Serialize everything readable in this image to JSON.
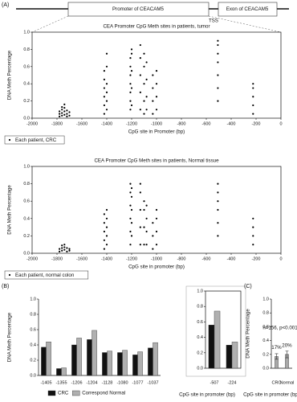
{
  "panels": [
    "(A)",
    "(B)",
    "(C)"
  ],
  "diagram": {
    "promoter": "Promoter of CEACAM5",
    "exon": "Exon of CEACAM5",
    "tss": "TSS"
  },
  "chart_data": [
    {
      "type": "scatter",
      "title": "CEA Promoter CpG Meth sites in patients, tumor",
      "x_label": "CpG site in Promoter (bp)",
      "y_label": "DNA Meth Percentage",
      "xlim": [
        -2000,
        0
      ],
      "xticks": [
        -2000,
        -1800,
        -1600,
        -1400,
        -1200,
        -1000,
        -800,
        -600,
        -400,
        -200,
        0
      ],
      "ylim": [
        0,
        1
      ],
      "yticks": [
        {
          "value": 0,
          "label": "0.0"
        },
        0.2,
        0.4,
        0.6,
        0.8,
        {
          "value": 1,
          "label": "1.0"
        }
      ],
      "legend": "bottom-left",
      "series": [
        {
          "name": "Each patient, CRC",
          "color": "#000000",
          "x": [
            -1780,
            -1780,
            -1780,
            -1760,
            -1760,
            -1760,
            -1760,
            -1740,
            -1740,
            -1740,
            -1740,
            -1720,
            -1720,
            -1720,
            -1700,
            -1700,
            -1420,
            -1420,
            -1420,
            -1420,
            -1420,
            -1420,
            -1400,
            -1400,
            -1400,
            -1400,
            -1400,
            -1400,
            -1210,
            -1210,
            -1210,
            -1210,
            -1210,
            -1210,
            -1210,
            -1200,
            -1200,
            -1200,
            -1200,
            -1200,
            -1130,
            -1130,
            -1130,
            -1130,
            -1130,
            -1100,
            -1100,
            -1100,
            -1100,
            -1100,
            -1080,
            -1080,
            -1080,
            -1080,
            -1030,
            -1030,
            -1030,
            -1030,
            -1000,
            -1000,
            -1000,
            -1000,
            -507,
            -507,
            -507,
            -507,
            -507,
            -507,
            -507,
            -224,
            -224,
            -224,
            -224,
            -224
          ],
          "values": [
            0.02,
            0.05,
            0.08,
            0.03,
            0.06,
            0.1,
            0.13,
            0.04,
            0.08,
            0.12,
            0.16,
            0.02,
            0.05,
            0.09,
            0.03,
            0.07,
            0.05,
            0.15,
            0.25,
            0.35,
            0.45,
            0.55,
            0.1,
            0.2,
            0.3,
            0.4,
            0.6,
            0.75,
            0.1,
            0.2,
            0.3,
            0.4,
            0.5,
            0.6,
            0.7,
            0.15,
            0.35,
            0.55,
            0.75,
            0.8,
            0.1,
            0.3,
            0.5,
            0.7,
            0.85,
            0.05,
            0.2,
            0.4,
            0.6,
            0.75,
            0.1,
            0.25,
            0.45,
            0.65,
            0.05,
            0.2,
            0.35,
            0.5,
            0.1,
            0.25,
            0.4,
            0.55,
            0.2,
            0.35,
            0.5,
            0.65,
            0.75,
            0.85,
            0.9,
            0.05,
            0.15,
            0.25,
            0.35,
            0.4
          ]
        }
      ]
    },
    {
      "type": "scatter",
      "title": "CEA Promoter CpG Meth sites in patients, Normal tissue",
      "x_label": "CpG site in promoter (bp)",
      "y_label": "DNA Meth Percentage",
      "xlim": [
        -2000,
        0
      ],
      "xticks": [
        -2000,
        -1800,
        -1600,
        -1400,
        -1200,
        -1000,
        -800,
        -600,
        -400,
        -200,
        0
      ],
      "ylim": [
        0,
        1
      ],
      "yticks": [
        {
          "value": 0,
          "label": "0.0"
        },
        0.2,
        0.4,
        0.6,
        0.8,
        {
          "value": 1,
          "label": "1.0"
        }
      ],
      "legend": "bottom-left",
      "series": [
        {
          "name": "Each patient, normal colon",
          "color": "#000000",
          "x": [
            -1780,
            -1780,
            -1760,
            -1760,
            -1760,
            -1740,
            -1740,
            -1740,
            -1720,
            -1720,
            -1700,
            -1700,
            -1420,
            -1420,
            -1420,
            -1420,
            -1420,
            -1400,
            -1400,
            -1400,
            -1400,
            -1400,
            -1210,
            -1210,
            -1210,
            -1210,
            -1210,
            -1210,
            -1200,
            -1200,
            -1200,
            -1200,
            -1200,
            -1130,
            -1130,
            -1130,
            -1130,
            -1130,
            -1100,
            -1100,
            -1100,
            -1100,
            -1080,
            -1080,
            -1080,
            -1080,
            -1030,
            -1030,
            -1030,
            -1000,
            -1000,
            -1000,
            -1000,
            -507,
            -507,
            -507,
            -507,
            -507,
            -507,
            -224,
            -224,
            -224,
            -224
          ],
          "values": [
            0.02,
            0.05,
            0.03,
            0.06,
            0.09,
            0.04,
            0.07,
            0.1,
            0.02,
            0.06,
            0.03,
            0.05,
            0.05,
            0.15,
            0.25,
            0.35,
            0.45,
            0.1,
            0.2,
            0.3,
            0.4,
            0.5,
            0.1,
            0.25,
            0.4,
            0.55,
            0.7,
            0.8,
            0.2,
            0.35,
            0.5,
            0.65,
            0.75,
            0.1,
            0.3,
            0.5,
            0.7,
            0.8,
            0.1,
            0.3,
            0.5,
            0.6,
            0.1,
            0.25,
            0.4,
            0.55,
            0.05,
            0.2,
            0.35,
            0.1,
            0.25,
            0.4,
            0.5,
            0.2,
            0.35,
            0.5,
            0.6,
            0.7,
            0.8,
            0.1,
            0.2,
            0.3,
            0.4
          ]
        }
      ]
    },
    {
      "type": "bar",
      "y_label": "DNA Meth Percentage",
      "categories": [
        "-1405",
        "-1355",
        "-1206",
        "-1204",
        "-1128",
        "-1080",
        "-1077",
        "-1037"
      ],
      "ylim": [
        0,
        1
      ],
      "yticks": [
        {
          "value": 0,
          "label": "0.0"
        },
        0.2,
        0.4,
        0.6,
        0.8,
        {
          "value": 1,
          "label": "1.0"
        }
      ],
      "legend": "bottom",
      "series": [
        {
          "name": "CRC",
          "color": "#111111",
          "values": [
            0.37,
            0.09,
            0.4,
            0.47,
            0.3,
            0.3,
            0.27,
            0.36
          ]
        },
        {
          "name": "Correspond Normal",
          "color": "#b0b0b0",
          "values": [
            0.44,
            0.1,
            0.49,
            0.59,
            0.32,
            0.33,
            0.31,
            0.43
          ]
        }
      ]
    },
    {
      "type": "bar",
      "x_label": "CpG site in promoter (bp)",
      "categories": [
        "-507",
        "-224"
      ],
      "ylim": [
        0,
        1
      ],
      "yticks": [
        {
          "value": 0,
          "label": "0.0"
        },
        0.2,
        0.4,
        0.6,
        0.8,
        {
          "value": 1,
          "label": "1.0"
        }
      ],
      "series": [
        {
          "name": "CRC",
          "color": "#111111",
          "values": [
            0.56,
            0.3
          ]
        },
        {
          "name": "Correspond Normal",
          "color": "#b0b0b0",
          "values": [
            0.74,
            0.34
          ]
        }
      ]
    },
    {
      "type": "bar",
      "x_label": "CpG site in promoter (bp)",
      "y_label": "DNA Meth Percentage",
      "annotation": "n=156, p<0.001",
      "categories": [
        "CRC",
        "Normal"
      ],
      "ylim": [
        0,
        1
      ],
      "yticks": [
        {
          "value": 0,
          "label": "0.0"
        },
        0.2,
        0.4,
        0.6,
        0.8,
        {
          "value": 1,
          "label": "1.0"
        }
      ],
      "series": [
        {
          "color": "#a8a8a8",
          "values": [
            0.17,
            0.2
          ],
          "errors": [
            0.04,
            0.05
          ],
          "value_labels": [
            "17%",
            "20%"
          ]
        }
      ]
    }
  ]
}
